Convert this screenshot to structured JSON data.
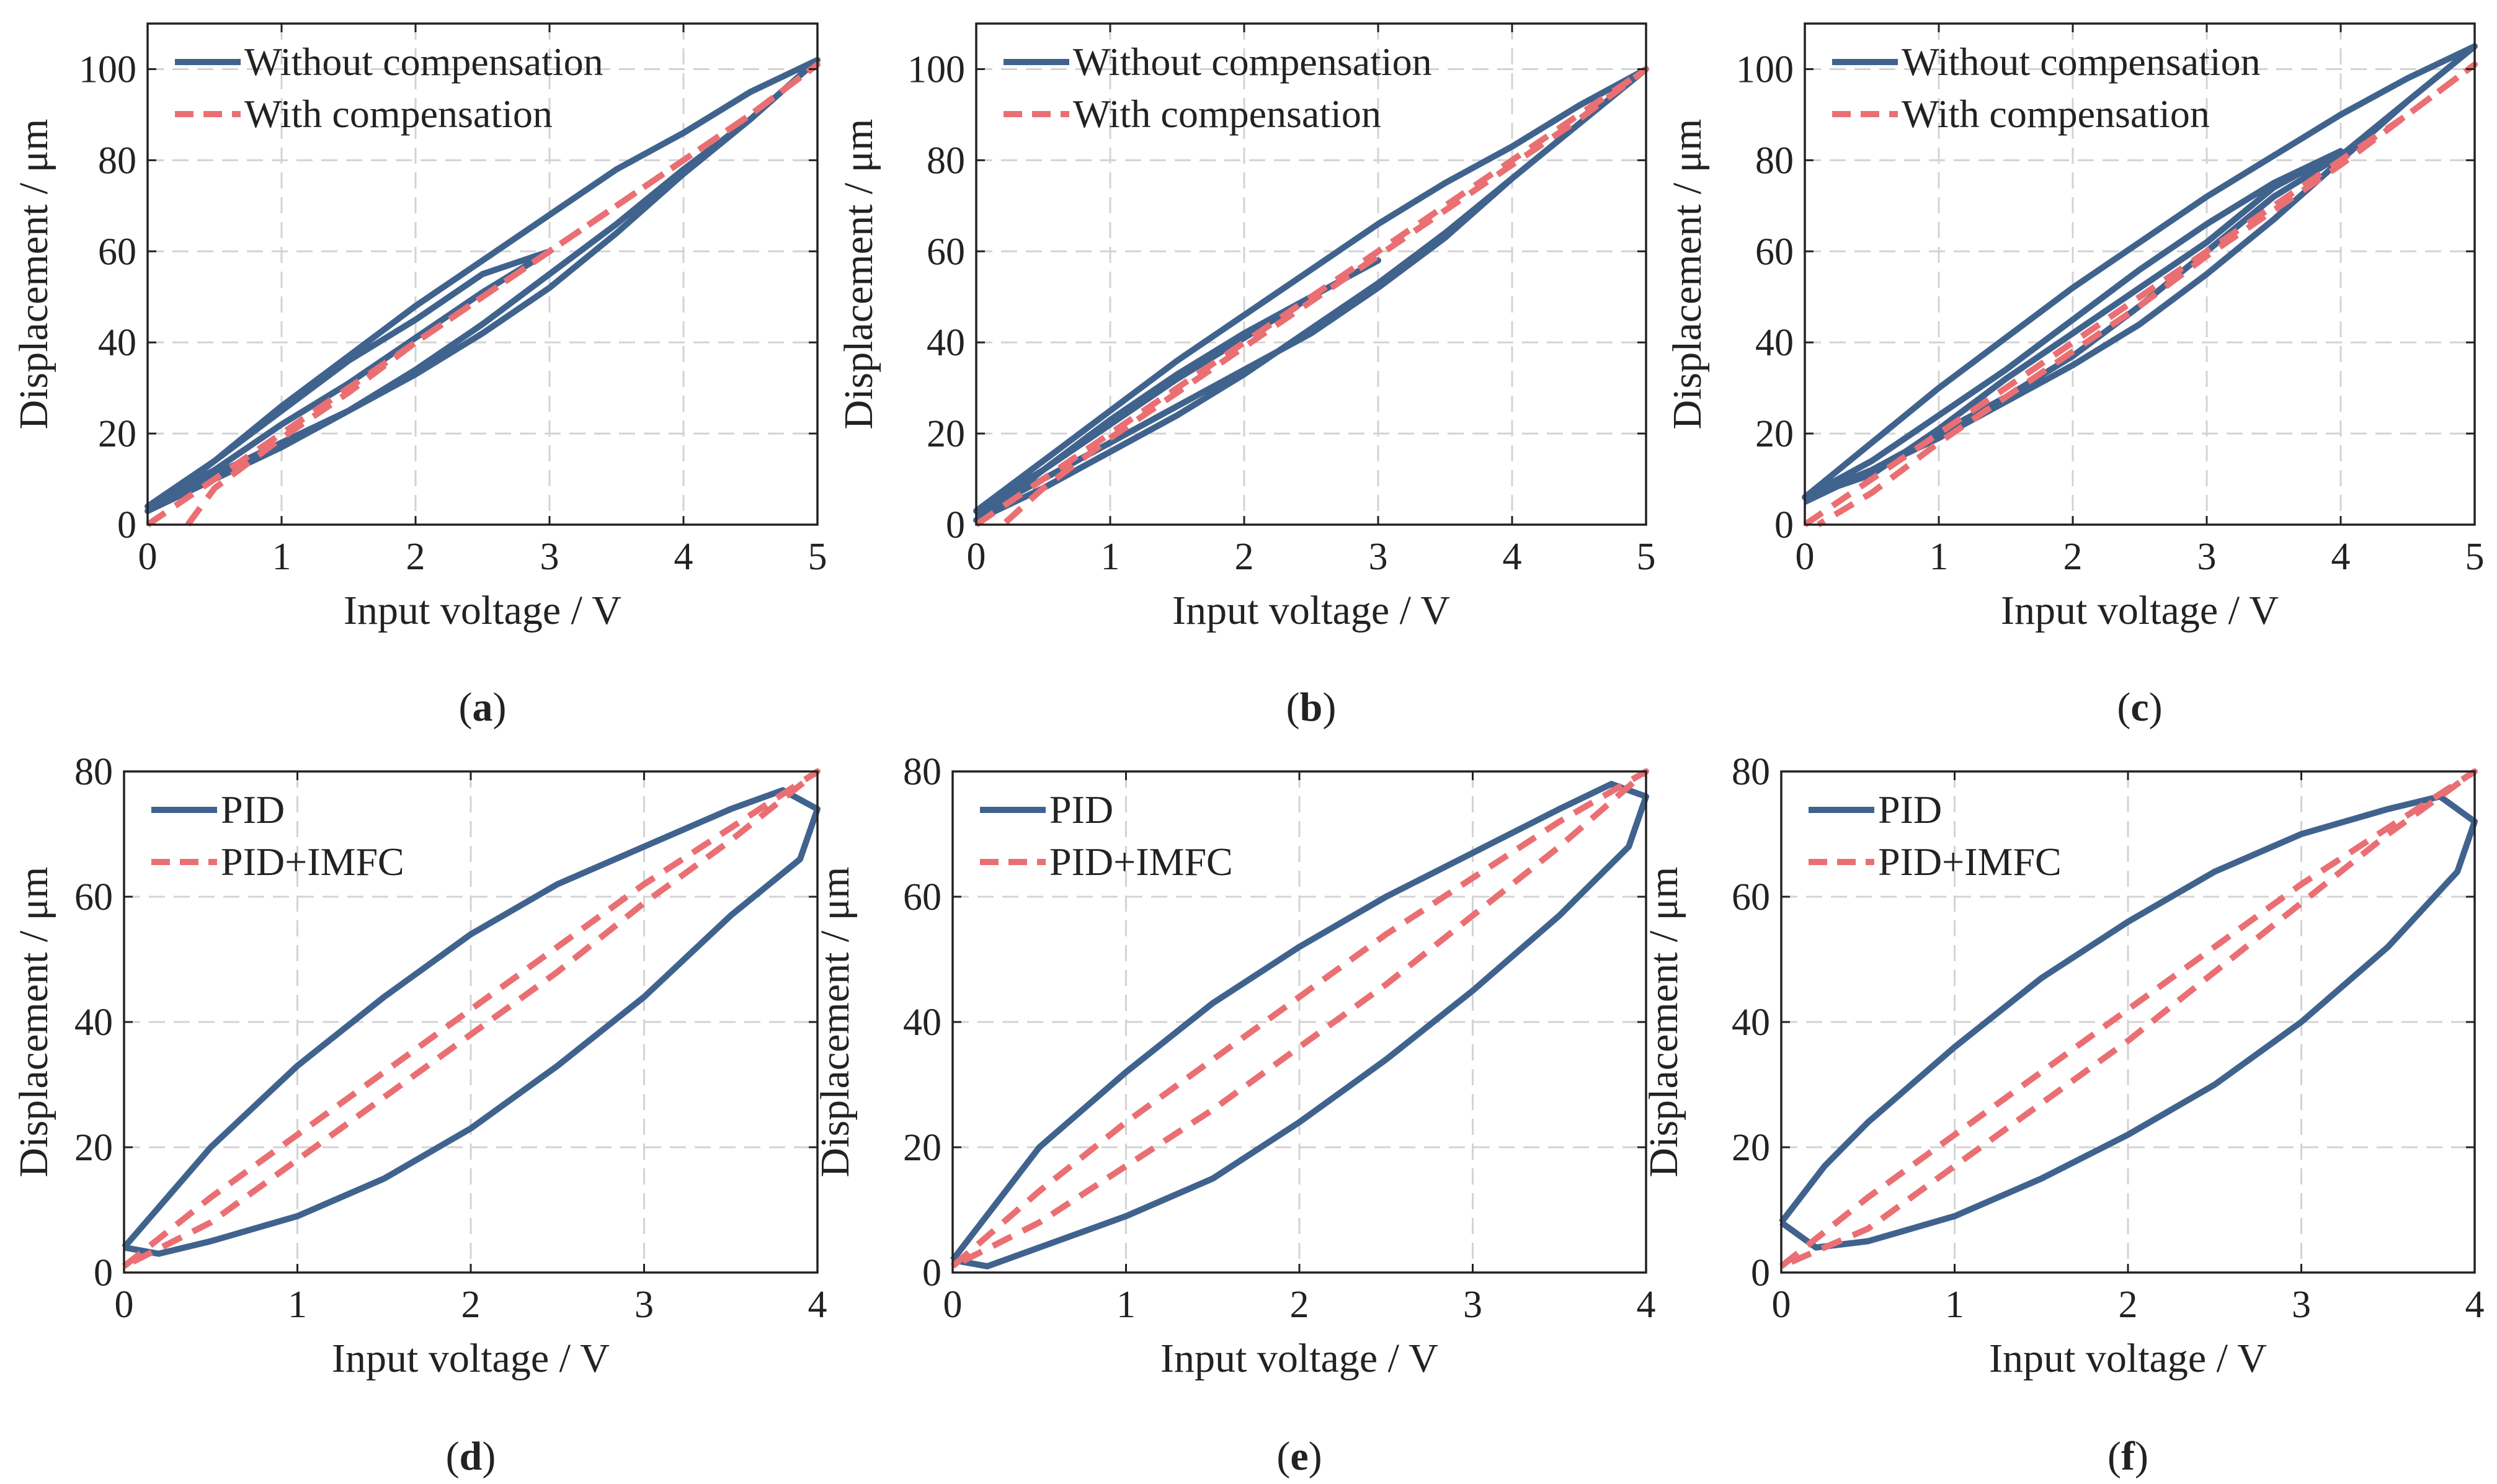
{
  "figure": {
    "panels": [
      {
        "caption": "a",
        "chart_data": {
          "type": "line",
          "xlabel": "Input voltage / V",
          "ylabel": "Displacement / μm",
          "xlim": [
            0,
            5
          ],
          "ylim": [
            0,
            110
          ],
          "xticks": [
            "0",
            "1",
            "2",
            "3",
            "4",
            "5"
          ],
          "yticks": [
            "0",
            "20",
            "40",
            "60",
            "80",
            "100"
          ],
          "grid": true,
          "legend_position": "top-left",
          "series": [
            {
              "name": "Without compensation",
              "style": "solid",
              "color": "#40638e",
              "x": [
                0,
                0.5,
                1,
                1.5,
                2,
                2.5,
                3,
                3.5,
                4,
                4.5,
                5,
                4.5,
                4,
                3.5,
                3,
                2.5,
                2,
                1.5,
                1,
                0.5,
                0,
                0.5,
                1,
                1.5,
                2,
                2.5,
                3,
                2.5,
                2,
                1.5,
                1,
                0.5,
                0,
                0.5,
                1,
                1.5,
                2,
                2.5,
                3,
                3.5,
                4,
                4.5,
                5
              ],
              "y": [
                3,
                11,
                18,
                25,
                33,
                42,
                52,
                64,
                77,
                89,
                102,
                95,
                86,
                78,
                68,
                58,
                48,
                37,
                26,
                14,
                4,
                12,
                22,
                31,
                41,
                51,
                60,
                55,
                45,
                36,
                25,
                14,
                3,
                10,
                17,
                25,
                34,
                44,
                55,
                66,
                78,
                89,
                102
              ]
            },
            {
              "name": "With compensation",
              "style": "dashed",
              "color": "#ea6f73",
              "x": [
                0,
                0.5,
                1,
                1.5,
                2,
                2.5,
                3,
                3.5,
                4,
                4.5,
                5,
                4.5,
                4,
                3.5,
                3,
                2.5,
                2,
                1.5,
                1,
                0.5,
                0.3
              ],
              "y": [
                0,
                10,
                20,
                30,
                40,
                50,
                60,
                70,
                80,
                90,
                101,
                90,
                80,
                70,
                60,
                50,
                40,
                29,
                19,
                8,
                0
              ]
            }
          ]
        }
      },
      {
        "caption": "b",
        "chart_data": {
          "type": "line",
          "xlabel": "Input voltage / V",
          "ylabel": "Displacement / μm",
          "xlim": [
            0,
            5
          ],
          "ylim": [
            0,
            110
          ],
          "xticks": [
            "0",
            "1",
            "2",
            "3",
            "4",
            "5"
          ],
          "yticks": [
            "0",
            "20",
            "40",
            "60",
            "80",
            "100"
          ],
          "grid": true,
          "legend_position": "top-left",
          "series": [
            {
              "name": "Without compensation",
              "style": "solid",
              "color": "#40638e",
              "x": [
                0,
                0.5,
                1,
                1.5,
                2,
                2.5,
                3,
                3.5,
                4,
                4.5,
                5,
                4.5,
                4,
                3.5,
                3,
                2.5,
                2,
                1.5,
                1,
                0.5,
                0,
                0.5,
                1,
                1.5,
                2,
                2.5,
                3,
                2.5,
                2,
                1.5,
                1,
                0.5,
                0,
                0.5,
                1,
                1.5,
                2,
                2.5,
                3,
                3.5,
                4,
                4.5,
                5
              ],
              "y": [
                2,
                10,
                18,
                26,
                34,
                42,
                52,
                63,
                76,
                88,
                100,
                92,
                83,
                75,
                66,
                56,
                46,
                36,
                25,
                14,
                3,
                12,
                22,
                32,
                41,
                50,
                58,
                50,
                42,
                33,
                23,
                12,
                1,
                8,
                16,
                24,
                33,
                43,
                53,
                64,
                76,
                88,
                100
              ]
            },
            {
              "name": "With compensation",
              "style": "dashed",
              "color": "#ea6f73",
              "x": [
                0,
                0.5,
                1,
                1.5,
                2,
                2.5,
                3,
                3.5,
                4,
                4.5,
                5,
                4.5,
                4,
                3.5,
                3,
                2.5,
                2,
                1.5,
                1,
                0.5,
                0.2
              ],
              "y": [
                0,
                10,
                20,
                30,
                40,
                50,
                60,
                70,
                80,
                90,
                100,
                89,
                79,
                69,
                59,
                49,
                39,
                29,
                19,
                8,
                0
              ]
            }
          ]
        }
      },
      {
        "caption": "c",
        "chart_data": {
          "type": "line",
          "xlabel": "Input voltage / V",
          "ylabel": "Displacement / μm",
          "xlim": [
            0,
            5
          ],
          "ylim": [
            0,
            110
          ],
          "xticks": [
            "0",
            "1",
            "2",
            "3",
            "4",
            "5"
          ],
          "yticks": [
            "0",
            "20",
            "40",
            "60",
            "80",
            "100"
          ],
          "grid": true,
          "legend_position": "top-left",
          "series": [
            {
              "name": "Without compensation",
              "style": "solid",
              "color": "#40638e",
              "x": [
                0,
                0.5,
                1,
                1.5,
                2,
                2.5,
                3,
                3.5,
                4,
                4.5,
                5,
                4.5,
                4,
                3.5,
                3,
                2.5,
                2,
                1.5,
                1,
                0.5,
                0,
                0.5,
                1,
                1.5,
                2,
                2.5,
                3,
                3.5,
                4,
                3.5,
                3,
                2.5,
                2,
                1.5,
                1,
                0.5,
                0,
                0.5,
                1,
                1.5,
                2,
                2.5,
                3,
                3.5,
                4,
                4.5,
                5
              ],
              "y": [
                5,
                12,
                19,
                27,
                35,
                44,
                55,
                67,
                80,
                93,
                105,
                98,
                90,
                81,
                72,
                62,
                52,
                41,
                30,
                18,
                6,
                14,
                24,
                34,
                45,
                56,
                66,
                75,
                82,
                74,
                62,
                52,
                42,
                32,
                21,
                11,
                6,
                12,
                20,
                28,
                37,
                48,
                60,
                72,
                81,
                93,
                105
              ]
            },
            {
              "name": "With compensation",
              "style": "dashed",
              "color": "#ea6f73",
              "x": [
                0,
                0.5,
                1,
                1.5,
                2,
                2.5,
                3,
                3.5,
                4,
                4.5,
                5,
                4.5,
                4,
                3.5,
                3,
                2.5,
                2,
                1.5,
                1,
                0.5,
                0.1
              ],
              "y": [
                0,
                10,
                20,
                30,
                40,
                50,
                60,
                70,
                80,
                90,
                101,
                90,
                79,
                69,
                59,
                48,
                38,
                28,
                18,
                7,
                0
              ]
            }
          ]
        }
      },
      {
        "caption": "d",
        "chart_data": {
          "type": "line",
          "xlabel": "Input voltage / V",
          "ylabel": "Displacement / μm",
          "xlim": [
            0,
            4
          ],
          "ylim": [
            0,
            80
          ],
          "xticks": [
            "0",
            "1",
            "2",
            "3",
            "4"
          ],
          "yticks": [
            "0",
            "20",
            "40",
            "60",
            "80"
          ],
          "grid": true,
          "legend_position": "top-left",
          "series": [
            {
              "name": "PID",
              "style": "solid",
              "color": "#40638e",
              "x": [
                0,
                0.25,
                0.5,
                1,
                1.5,
                2,
                2.5,
                3,
                3.5,
                3.8,
                4,
                3.9,
                3.5,
                3,
                2.5,
                2,
                1.5,
                1,
                0.5,
                0.2,
                0
              ],
              "y": [
                4,
                12,
                20,
                33,
                44,
                54,
                62,
                68,
                74,
                77,
                74,
                66,
                57,
                44,
                33,
                23,
                15,
                9,
                5,
                3,
                4
              ]
            },
            {
              "name": "PID+IMFC",
              "style": "dashed",
              "color": "#ea6f73",
              "x": [
                0,
                0.5,
                1,
                1.5,
                2,
                2.5,
                3,
                3.5,
                4,
                3.5,
                3,
                2.5,
                2,
                1.5,
                1,
                0.5,
                0
              ],
              "y": [
                1,
                12,
                22,
                32,
                42,
                52,
                62,
                71,
                80,
                69,
                59,
                48,
                38,
                28,
                18,
                8,
                1
              ]
            }
          ]
        }
      },
      {
        "caption": "e",
        "chart_data": {
          "type": "line",
          "xlabel": "Input voltage / V",
          "ylabel": "Displacement / μm",
          "xlim": [
            0,
            4
          ],
          "ylim": [
            0,
            80
          ],
          "xticks": [
            "0",
            "1",
            "2",
            "3",
            "4"
          ],
          "yticks": [
            "0",
            "20",
            "40",
            "60",
            "80"
          ],
          "grid": true,
          "legend_position": "top-left",
          "series": [
            {
              "name": "PID",
              "style": "solid",
              "color": "#40638e",
              "x": [
                0,
                0.25,
                0.5,
                1,
                1.5,
                2,
                2.5,
                3,
                3.5,
                3.8,
                4,
                3.9,
                3.5,
                3,
                2.5,
                2,
                1.5,
                1,
                0.5,
                0.2,
                0
              ],
              "y": [
                2,
                11,
                20,
                32,
                43,
                52,
                60,
                67,
                74,
                78,
                76,
                68,
                57,
                45,
                34,
                24,
                15,
                9,
                4,
                1,
                2
              ]
            },
            {
              "name": "PID+IMFC",
              "style": "dashed",
              "color": "#ea6f73",
              "x": [
                0,
                0.5,
                1,
                1.5,
                2,
                2.5,
                3,
                3.5,
                4,
                3.5,
                3,
                2.5,
                2,
                1.5,
                1,
                0.5,
                0
              ],
              "y": [
                1,
                13,
                24,
                34,
                44,
                54,
                63,
                72,
                80,
                68,
                57,
                46,
                36,
                26,
                17,
                8,
                1
              ]
            }
          ]
        }
      },
      {
        "caption": "f",
        "chart_data": {
          "type": "line",
          "xlabel": "Input voltage / V",
          "ylabel": "Displacement / μm",
          "xlim": [
            0,
            4
          ],
          "ylim": [
            0,
            80
          ],
          "xticks": [
            "0",
            "1",
            "2",
            "3",
            "4"
          ],
          "yticks": [
            "0",
            "20",
            "40",
            "60",
            "80"
          ],
          "grid": true,
          "legend_position": "top-left",
          "series": [
            {
              "name": "PID",
              "style": "solid",
              "color": "#40638e",
              "x": [
                0,
                0.25,
                0.5,
                1,
                1.5,
                2,
                2.5,
                3,
                3.5,
                3.8,
                4,
                3.9,
                3.5,
                3,
                2.5,
                2,
                1.5,
                1,
                0.5,
                0.2,
                0
              ],
              "y": [
                8,
                17,
                24,
                36,
                47,
                56,
                64,
                70,
                74,
                76,
                72,
                64,
                52,
                40,
                30,
                22,
                15,
                9,
                5,
                4,
                8
              ]
            },
            {
              "name": "PID+IMFC",
              "style": "dashed",
              "color": "#ea6f73",
              "x": [
                0,
                0.5,
                1,
                1.5,
                2,
                2.5,
                3,
                3.5,
                4,
                3.5,
                3,
                2.5,
                2,
                1.5,
                1,
                0.5,
                0
              ],
              "y": [
                1,
                12,
                22,
                32,
                42,
                52,
                62,
                71,
                80,
                70,
                59,
                48,
                37,
                27,
                17,
                7,
                1
              ]
            }
          ]
        }
      }
    ]
  }
}
